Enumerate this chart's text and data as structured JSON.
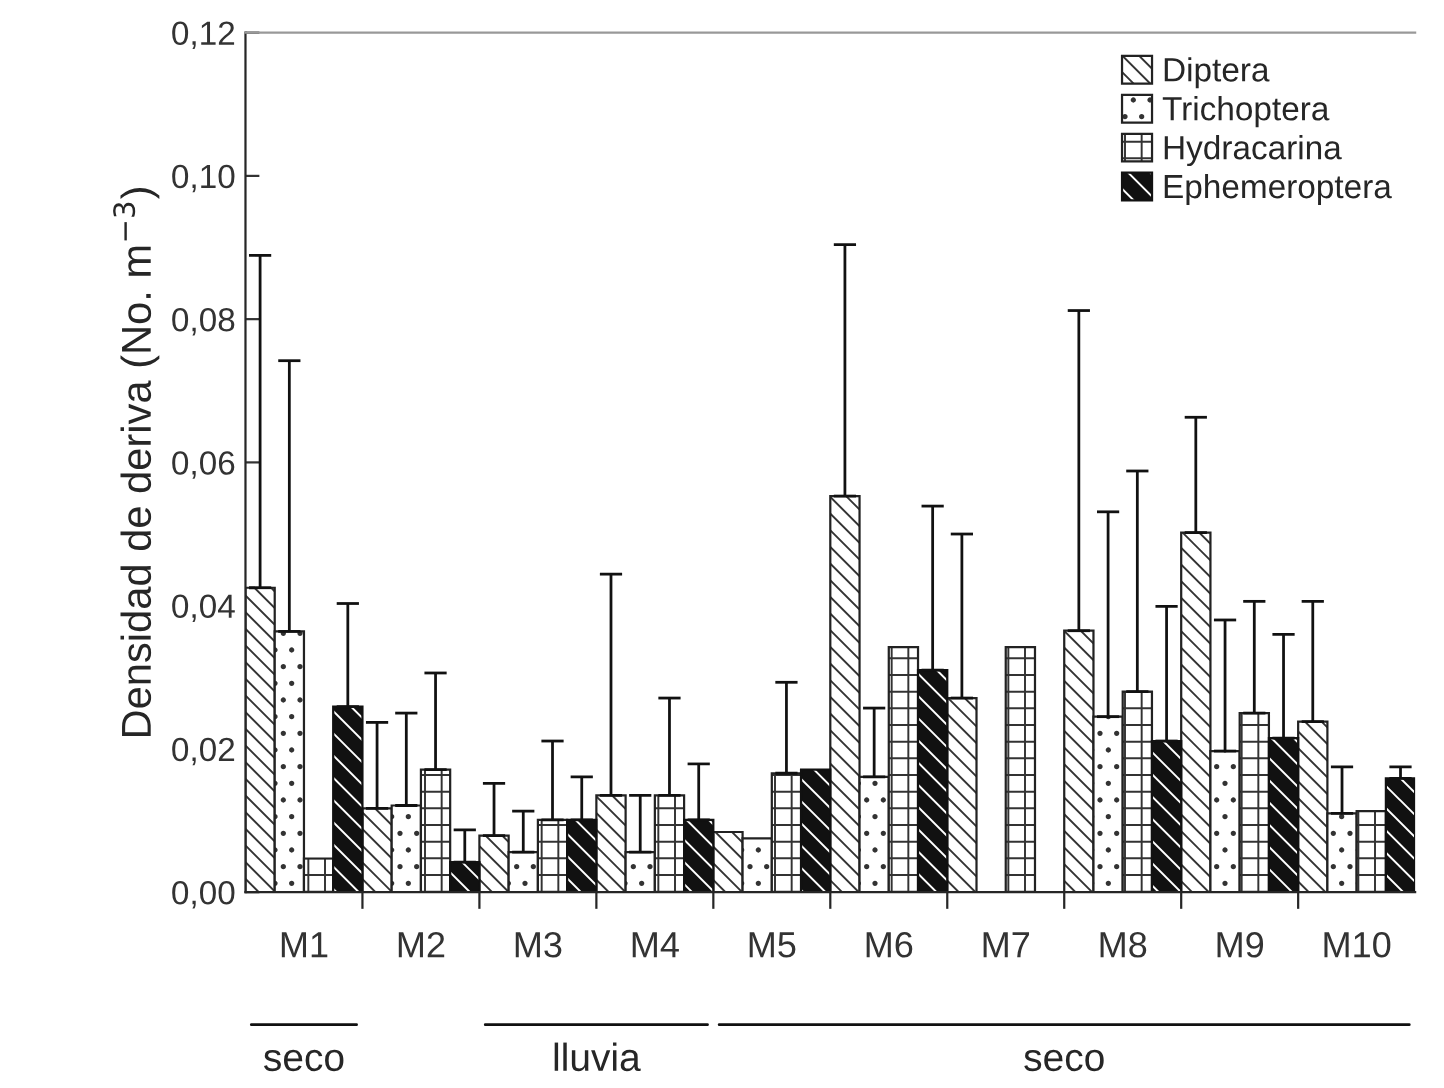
{
  "chart_data": {
    "type": "bar",
    "ylabel": "Densidad de deriva (No. m$^{−3}$)",
    "categories": [
      "M1",
      "M2",
      "M3",
      "M4",
      "M5",
      "M6",
      "M7",
      "M8",
      "M9",
      "M10"
    ],
    "series": [
      {
        "name": "Diptera",
        "color": "#222222",
        "values": [
          0.0425,
          0.0117,
          0.0079,
          0.0135,
          0.0084,
          0.0553,
          0.0271,
          0.0365,
          0.0502,
          0.0238
        ],
        "errors": [
          [
            0.0425,
            0.0889
          ],
          [
            0.0117,
            0.0237
          ],
          [
            0.0079,
            0.0152
          ],
          [
            0.0135,
            0.0444
          ],
          null,
          [
            0.0553,
            0.0904
          ],
          [
            0.0271,
            0.05
          ],
          [
            0.0365,
            0.0812
          ],
          [
            0.0502,
            0.0663
          ],
          [
            0.0238,
            0.0406
          ]
        ]
      },
      {
        "name": "Trichoptera",
        "color": "#222222",
        "values": [
          0.0364,
          0.0121,
          0.0056,
          0.0056,
          0.0075,
          0.0161,
          null,
          0.0245,
          0.0197,
          0.011
        ],
        "errors": [
          [
            0.0364,
            0.0742
          ],
          [
            0.0121,
            0.025
          ],
          [
            0.0056,
            0.0113
          ],
          [
            0.0056,
            0.0135
          ],
          null,
          [
            0.0161,
            0.0257
          ],
          null,
          [
            0.0245,
            0.0531
          ],
          [
            0.0197,
            0.038
          ],
          [
            0.011,
            0.0175
          ]
        ]
      },
      {
        "name": "Hydracarina",
        "color": "#222222",
        "values": [
          0.0047,
          0.0171,
          0.0101,
          0.0135,
          0.0166,
          0.0342,
          0.0342,
          0.028,
          0.025,
          0.0113
        ],
        "errors": [
          null,
          [
            0.0171,
            0.0306
          ],
          [
            0.0101,
            0.0211
          ],
          [
            0.0135,
            0.0271
          ],
          [
            0.0166,
            0.0293
          ],
          null,
          null,
          [
            0.028,
            0.0588
          ],
          [
            0.025,
            0.0406
          ],
          null
        ]
      },
      {
        "name": "Ephemeroptera",
        "color": "#111111",
        "values": [
          0.0259,
          0.0042,
          0.0101,
          0.0101,
          0.0171,
          0.031,
          null,
          0.0211,
          0.0215,
          0.0159
        ],
        "errors": [
          [
            0.0259,
            0.0403
          ],
          [
            0.0042,
            0.0087
          ],
          [
            0.0101,
            0.0161
          ],
          [
            0.0101,
            0.0179
          ],
          null,
          [
            0.031,
            0.0539
          ],
          null,
          [
            0.0211,
            0.0399
          ],
          [
            0.0215,
            0.036
          ],
          [
            0.0159,
            0.0175
          ]
        ]
      }
    ],
    "ylim": [
      0,
      0.12
    ],
    "yticks": [
      {
        "value": 0,
        "label": "0,00"
      },
      {
        "value": 0.02,
        "label": "0,02"
      },
      {
        "value": 0.04,
        "label": "0,04"
      },
      {
        "value": 0.06,
        "label": "0,06"
      },
      {
        "value": 0.08,
        "label": "0,08"
      },
      {
        "value": 0.1,
        "label": "0,10"
      },
      {
        "value": 0.12,
        "label": "0,12"
      }
    ],
    "annotations": [
      "seco",
      "lluvia",
      "seco"
    ],
    "legend": "top right",
    "grid": false
  }
}
